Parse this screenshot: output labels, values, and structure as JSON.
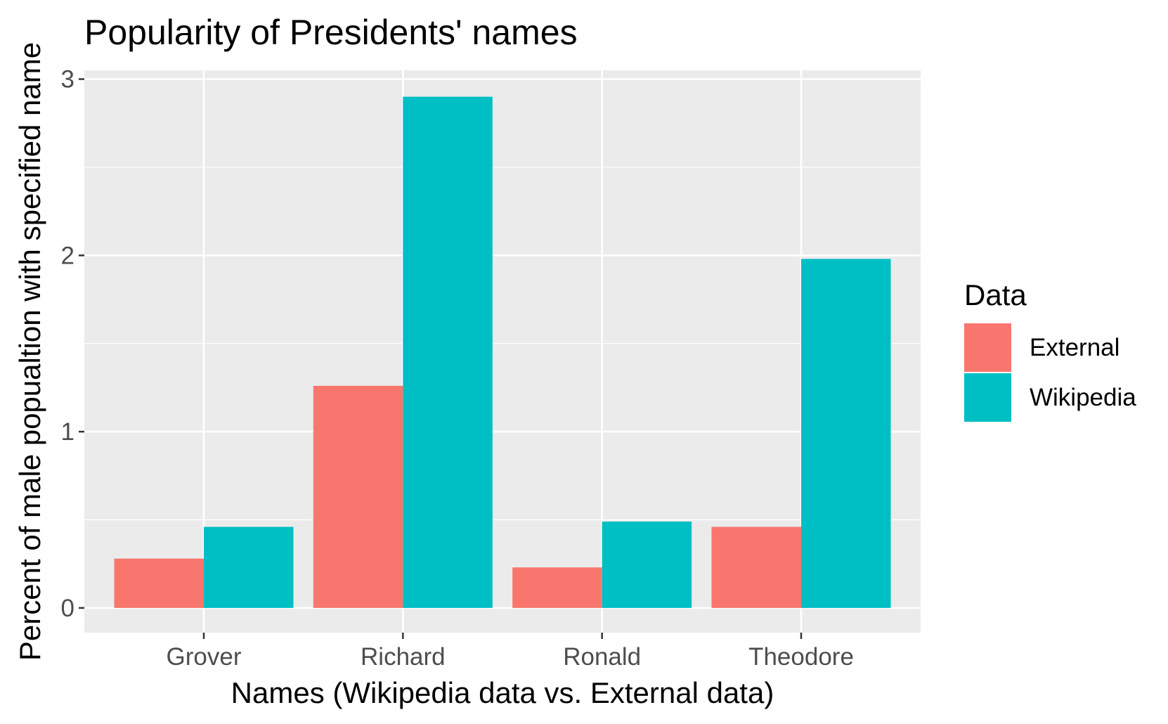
{
  "chart_data": {
    "type": "bar",
    "title": "Popularity of Presidents' names",
    "xlabel": "Names (Wikipedia data vs. External data)",
    "ylabel": "Percent of male popualtion with specified name",
    "categories": [
      "Grover",
      "Richard",
      "Ronald",
      "Theodore"
    ],
    "series": [
      {
        "name": "External",
        "color": "#F8766D",
        "values": [
          0.28,
          1.26,
          0.23,
          0.46
        ]
      },
      {
        "name": "Wikipedia",
        "color": "#00BFC4",
        "values": [
          0.46,
          2.9,
          0.49,
          1.98
        ]
      }
    ],
    "ylim": [
      -0.14,
      3.05
    ],
    "yticks": [
      0,
      1,
      2,
      3
    ],
    "grid": true,
    "panel_background": "#EBEBEB",
    "legend": {
      "title": "Data",
      "position": "right",
      "items": [
        "External",
        "Wikipedia"
      ]
    }
  }
}
